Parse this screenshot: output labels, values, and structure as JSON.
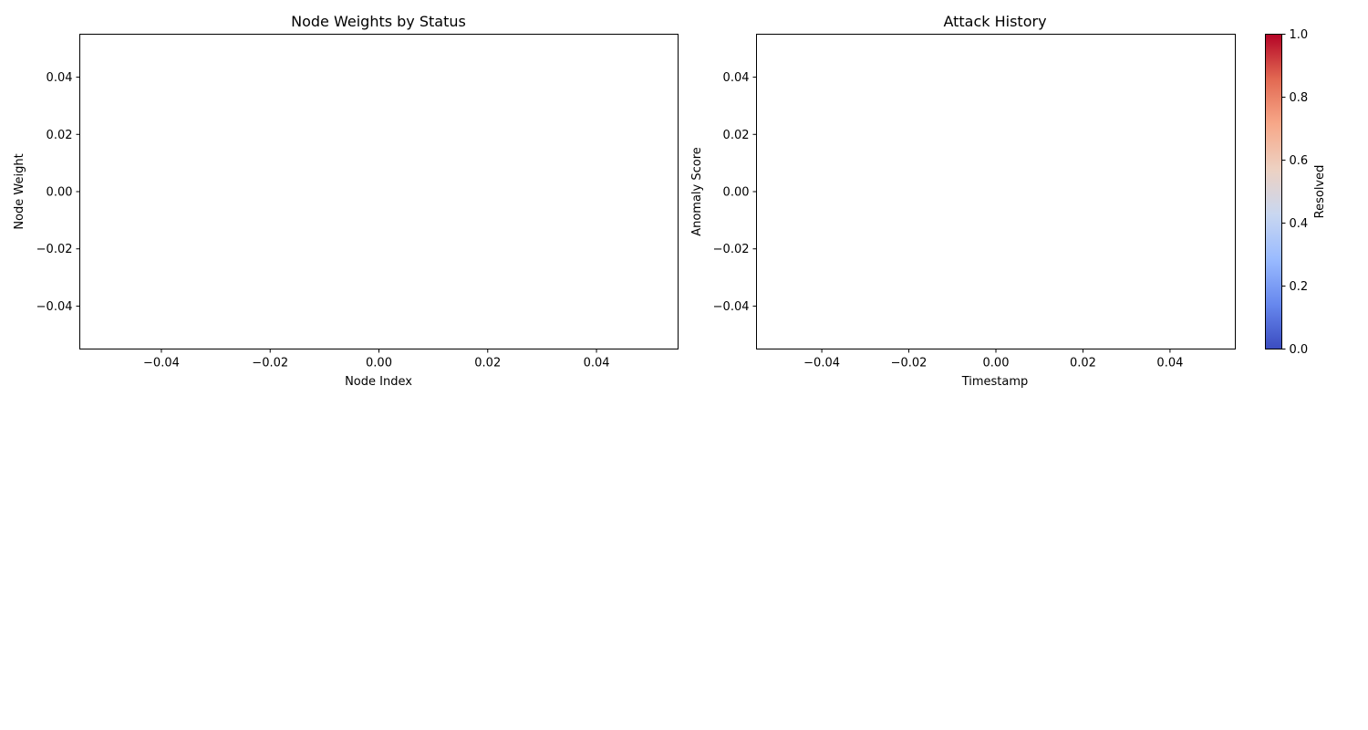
{
  "chart_data": [
    {
      "type": "bar",
      "title": "Node Weights by Status",
      "xlabel": "Node Index",
      "ylabel": "Node Weight",
      "xlim": [
        -0.055,
        0.055
      ],
      "ylim": [
        -0.055,
        0.055
      ],
      "xticks": [
        "−0.04",
        "−0.02",
        "0.00",
        "0.02",
        "0.04"
      ],
      "yticks": [
        "0.04",
        "0.02",
        "0.00",
        "−0.02",
        "−0.04"
      ],
      "categories": [],
      "values": [],
      "grid": false
    },
    {
      "type": "scatter",
      "title": "Attack History",
      "xlabel": "Timestamp",
      "ylabel": "Anomaly Score",
      "xlim": [
        -0.055,
        0.055
      ],
      "ylim": [
        -0.055,
        0.055
      ],
      "xticks": [
        "−0.04",
        "−0.02",
        "0.00",
        "0.02",
        "0.04"
      ],
      "yticks": [
        "0.04",
        "0.02",
        "0.00",
        "−0.02",
        "−0.04"
      ],
      "x": [],
      "y": [],
      "grid": false,
      "colorbar": {
        "label": "Resolved",
        "range": [
          0,
          1
        ],
        "ticks": [
          "0.0",
          "0.2",
          "0.4",
          "0.6",
          "0.8",
          "1.0"
        ],
        "colormap": "coolwarm",
        "colors": [
          "#3b4cc0",
          "#6788ee",
          "#9abbff",
          "#c9d7f0",
          "#edd1c2",
          "#f7a889",
          "#e26952",
          "#b40426"
        ]
      }
    }
  ]
}
